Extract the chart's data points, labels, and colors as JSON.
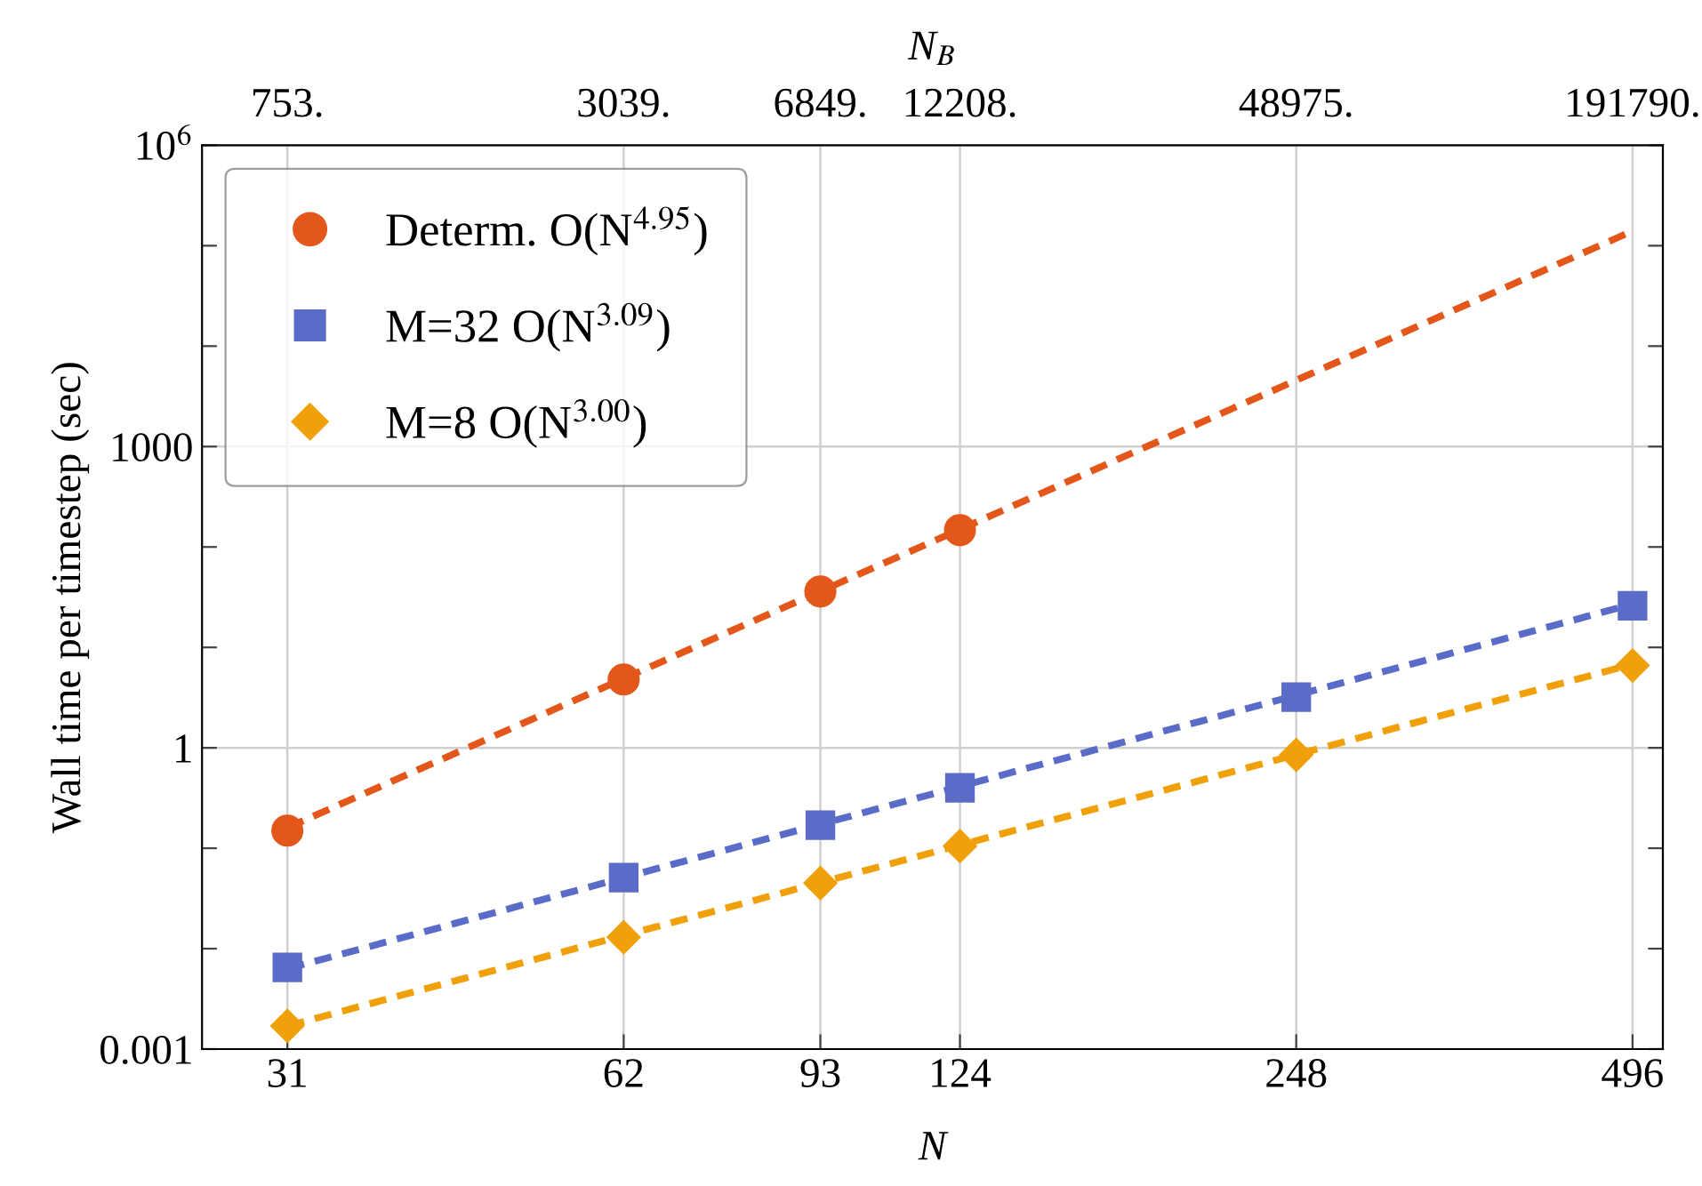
{
  "chart_data": {
    "type": "scatter",
    "xlabel": "N",
    "x2label": "N$_{B}$",
    "ylabel": "Wall time per timestep (sec)",
    "log": "xy",
    "grid": true,
    "legend": "top left",
    "xlim": [
      26,
      528
    ],
    "xticks": [
      31,
      62,
      93,
      124,
      248,
      496
    ],
    "annotations": [
      "753.",
      "3039.",
      "6849.",
      "12208.",
      "48975.",
      "191790."
    ],
    "ylim": [
      0.001,
      1000000
    ],
    "yticks": [
      0.001,
      {
        "value": 0.01,
        "label": null
      },
      {
        "value": 0.1,
        "label": null
      },
      1,
      {
        "value": 10,
        "label": null
      },
      {
        "value": 100,
        "label": null
      },
      1000,
      {
        "value": 10000,
        "label": null
      },
      {
        "value": 100000,
        "label": null
      },
      {
        "value": 1000000,
        "label": "10$^{6}$"
      }
    ],
    "series": [
      {
        "name": "Determ. O(N$^{4.95}$)",
        "marker": "circle",
        "color": "#e4571b",
        "x": [
          31,
          62,
          93,
          124
        ],
        "values": [
          0.15,
          4.8,
          36,
          147
        ]
      },
      {
        "name": "M=32 O(N$^{3.09}$)",
        "marker": "square",
        "color": "#5b6bc8",
        "x": [
          31,
          62,
          93,
          124,
          248,
          496
        ],
        "values": [
          0.0065,
          0.051,
          0.17,
          0.4,
          3.2,
          26
        ]
      },
      {
        "name": "M=8 O(N$^{3.00}$)",
        "marker": "diamond",
        "color": "#f0a00a",
        "x": [
          31,
          62,
          93,
          124,
          248,
          496
        ],
        "values": [
          0.0017,
          0.013,
          0.045,
          0.105,
          0.85,
          6.6
        ]
      },
      {
        "type": "line",
        "line_style": "dashed",
        "color": "#e4571b",
        "x": [
          31,
          496
        ],
        "values": [
          0.16,
          140000
        ]
      },
      {
        "type": "line",
        "line_style": "dashed",
        "color": "#5b6bc8",
        "x": [
          31,
          496
        ],
        "values": [
          0.0063,
          27
        ]
      },
      {
        "type": "line",
        "line_style": "dashed",
        "color": "#f0a00a",
        "x": [
          31,
          496
        ],
        "values": [
          0.0017,
          6.8
        ]
      }
    ]
  }
}
